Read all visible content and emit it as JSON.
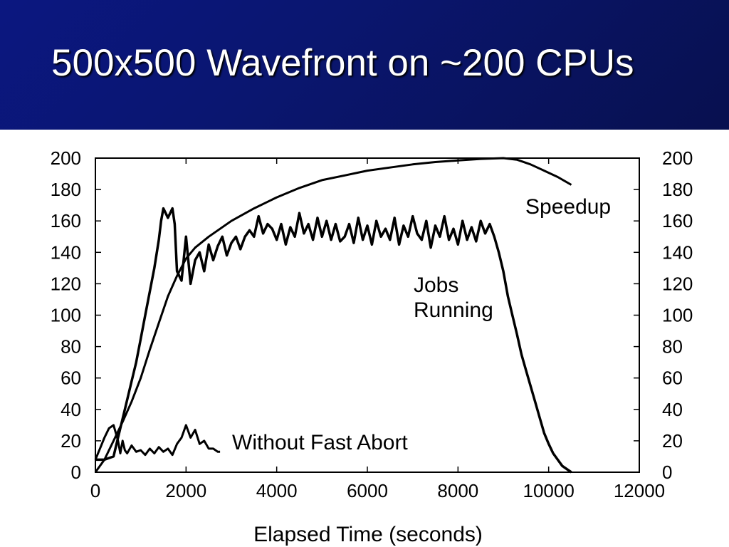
{
  "slide": {
    "title": "500x500 Wavefront on ~200 CPUs",
    "banner_color": "#0b1780",
    "title_color": "#ffffff"
  },
  "chart_data": {
    "type": "line",
    "title": "",
    "xlabel": "Elapsed Time (seconds)",
    "ylabel": "",
    "xlim": [
      0,
      12000
    ],
    "ylim": [
      0,
      200
    ],
    "xticks": [
      "0",
      "2000",
      "4000",
      "6000",
      "8000",
      "10000",
      "12000"
    ],
    "yticks": [
      "0",
      "20",
      "40",
      "60",
      "80",
      "100",
      "120",
      "140",
      "160",
      "180",
      "200"
    ],
    "y2ticks": [
      "0",
      "20",
      "40",
      "60",
      "80",
      "100",
      "120",
      "140",
      "160",
      "180",
      "200"
    ],
    "grid": false,
    "legend": "none",
    "annotations": {
      "speedup": "Speedup",
      "jobs_line1": "Jobs",
      "jobs_line2": "Running",
      "no_fast_abort": "Without Fast Abort"
    },
    "series": [
      {
        "name": "Jobs Running",
        "points": [
          [
            0,
            8
          ],
          [
            200,
            8
          ],
          [
            400,
            10
          ],
          [
            500,
            22
          ],
          [
            650,
            40
          ],
          [
            800,
            58
          ],
          [
            900,
            70
          ],
          [
            1000,
            85
          ],
          [
            1100,
            100
          ],
          [
            1200,
            115
          ],
          [
            1300,
            130
          ],
          [
            1400,
            148
          ],
          [
            1450,
            160
          ],
          [
            1500,
            168
          ],
          [
            1600,
            162
          ],
          [
            1700,
            168
          ],
          [
            1750,
            158
          ],
          [
            1800,
            128
          ],
          [
            1900,
            122
          ],
          [
            2000,
            150
          ],
          [
            2100,
            120
          ],
          [
            2200,
            135
          ],
          [
            2300,
            140
          ],
          [
            2400,
            128
          ],
          [
            2500,
            145
          ],
          [
            2600,
            135
          ],
          [
            2700,
            144
          ],
          [
            2800,
            150
          ],
          [
            2900,
            138
          ],
          [
            3000,
            146
          ],
          [
            3100,
            150
          ],
          [
            3200,
            142
          ],
          [
            3300,
            150
          ],
          [
            3400,
            154
          ],
          [
            3500,
            150
          ],
          [
            3600,
            163
          ],
          [
            3700,
            152
          ],
          [
            3800,
            158
          ],
          [
            3900,
            155
          ],
          [
            4000,
            148
          ],
          [
            4100,
            158
          ],
          [
            4200,
            145
          ],
          [
            4300,
            156
          ],
          [
            4400,
            150
          ],
          [
            4500,
            165
          ],
          [
            4600,
            152
          ],
          [
            4700,
            158
          ],
          [
            4800,
            148
          ],
          [
            4900,
            162
          ],
          [
            5000,
            150
          ],
          [
            5100,
            160
          ],
          [
            5200,
            148
          ],
          [
            5300,
            158
          ],
          [
            5400,
            147
          ],
          [
            5500,
            150
          ],
          [
            5600,
            158
          ],
          [
            5700,
            146
          ],
          [
            5800,
            162
          ],
          [
            5900,
            148
          ],
          [
            6000,
            157
          ],
          [
            6100,
            145
          ],
          [
            6200,
            160
          ],
          [
            6300,
            150
          ],
          [
            6400,
            155
          ],
          [
            6500,
            148
          ],
          [
            6600,
            162
          ],
          [
            6700,
            145
          ],
          [
            6800,
            157
          ],
          [
            6900,
            150
          ],
          [
            7000,
            163
          ],
          [
            7100,
            152
          ],
          [
            7200,
            148
          ],
          [
            7300,
            160
          ],
          [
            7400,
            143
          ],
          [
            7500,
            157
          ],
          [
            7600,
            150
          ],
          [
            7700,
            163
          ],
          [
            7800,
            148
          ],
          [
            7900,
            155
          ],
          [
            8000,
            145
          ],
          [
            8100,
            160
          ],
          [
            8200,
            148
          ],
          [
            8300,
            156
          ],
          [
            8400,
            147
          ],
          [
            8500,
            160
          ],
          [
            8600,
            152
          ],
          [
            8700,
            158
          ],
          [
            8800,
            150
          ],
          [
            8900,
            140
          ],
          [
            9000,
            128
          ],
          [
            9100,
            112
          ],
          [
            9200,
            100
          ],
          [
            9300,
            88
          ],
          [
            9400,
            75
          ],
          [
            9500,
            65
          ],
          [
            9600,
            55
          ],
          [
            9700,
            45
          ],
          [
            9800,
            35
          ],
          [
            9900,
            25
          ],
          [
            10000,
            18
          ],
          [
            10100,
            12
          ],
          [
            10200,
            8
          ],
          [
            10300,
            4
          ],
          [
            10500,
            0
          ]
        ]
      },
      {
        "name": "Speedup",
        "points": [
          [
            0,
            0
          ],
          [
            200,
            8
          ],
          [
            400,
            20
          ],
          [
            600,
            32
          ],
          [
            800,
            45
          ],
          [
            1000,
            60
          ],
          [
            1200,
            78
          ],
          [
            1400,
            95
          ],
          [
            1600,
            112
          ],
          [
            1800,
            125
          ],
          [
            2000,
            136
          ],
          [
            2200,
            143
          ],
          [
            2500,
            150
          ],
          [
            3000,
            160
          ],
          [
            3500,
            168
          ],
          [
            4000,
            175
          ],
          [
            4500,
            181
          ],
          [
            5000,
            186
          ],
          [
            5500,
            189
          ],
          [
            6000,
            192
          ],
          [
            6500,
            194
          ],
          [
            7000,
            196
          ],
          [
            7500,
            197.5
          ],
          [
            8000,
            198.5
          ],
          [
            8500,
            199.5
          ],
          [
            9000,
            200
          ],
          [
            9300,
            199
          ],
          [
            9600,
            196
          ],
          [
            9900,
            192
          ],
          [
            10200,
            188
          ],
          [
            10500,
            183
          ]
        ]
      },
      {
        "name": "Without Fast Abort",
        "points": [
          [
            0,
            8
          ],
          [
            100,
            15
          ],
          [
            200,
            22
          ],
          [
            300,
            28
          ],
          [
            400,
            30
          ],
          [
            450,
            25
          ],
          [
            500,
            20
          ],
          [
            550,
            12
          ],
          [
            600,
            20
          ],
          [
            650,
            14
          ],
          [
            700,
            12
          ],
          [
            800,
            17
          ],
          [
            900,
            13
          ],
          [
            1000,
            14
          ],
          [
            1100,
            11
          ],
          [
            1200,
            15
          ],
          [
            1300,
            12
          ],
          [
            1400,
            16
          ],
          [
            1500,
            13
          ],
          [
            1600,
            15
          ],
          [
            1700,
            11
          ],
          [
            1800,
            18
          ],
          [
            1900,
            22
          ],
          [
            2000,
            30
          ],
          [
            2100,
            22
          ],
          [
            2200,
            27
          ],
          [
            2300,
            18
          ],
          [
            2400,
            20
          ],
          [
            2500,
            15
          ],
          [
            2600,
            15
          ],
          [
            2700,
            13
          ],
          [
            2750,
            13
          ]
        ]
      }
    ]
  }
}
